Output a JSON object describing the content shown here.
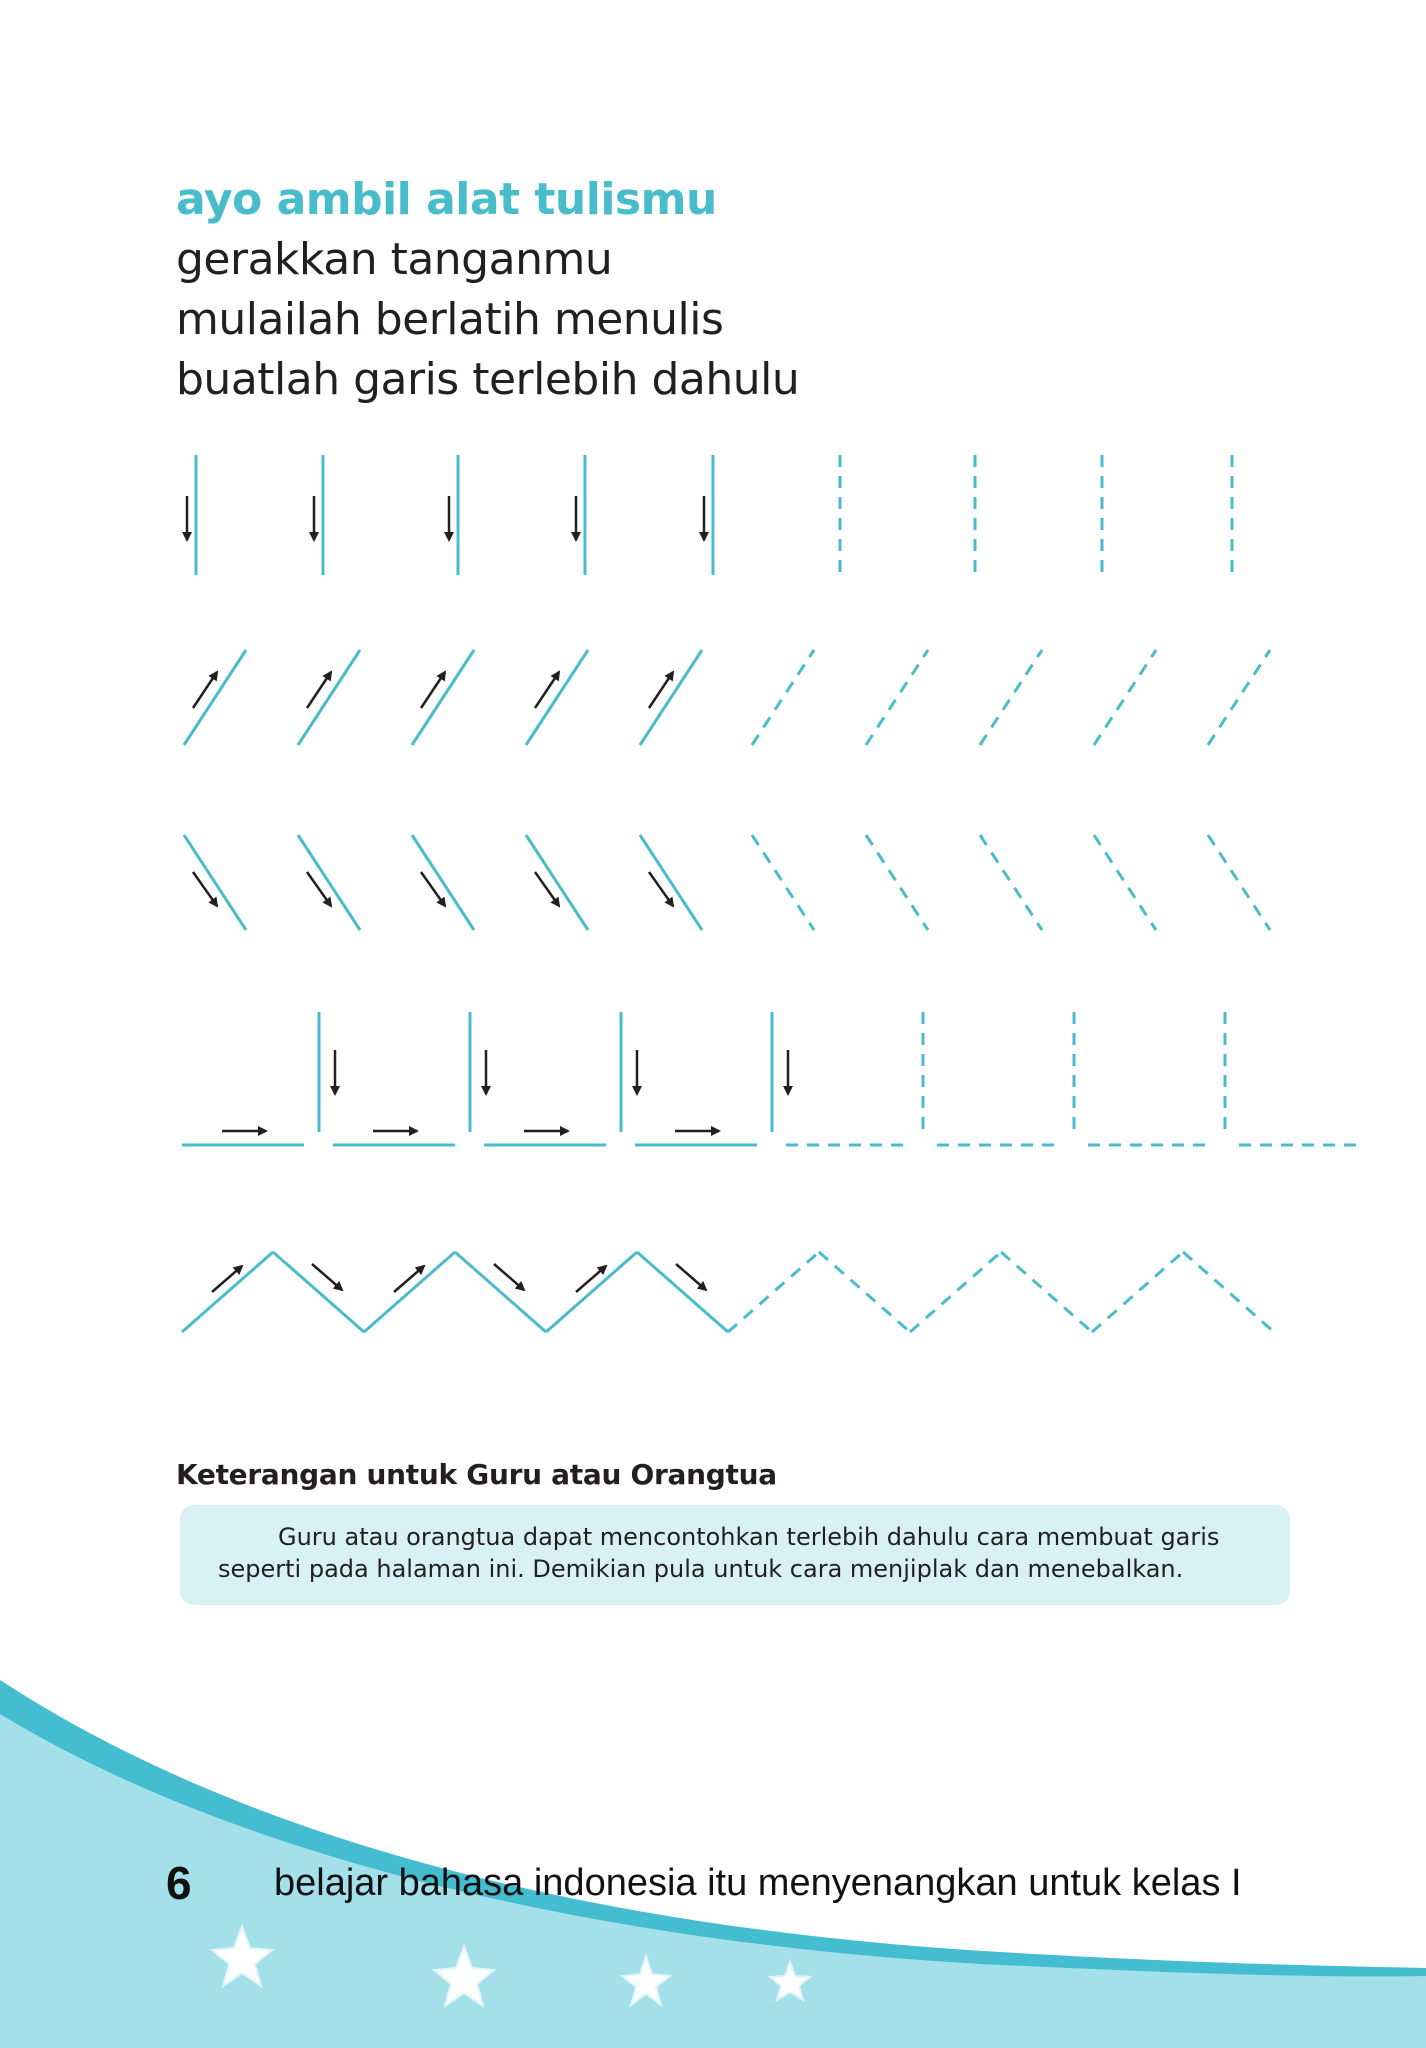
{
  "title": {
    "line1": "ayo ambil alat tulismu",
    "line2": "gerakkan tanganmu",
    "line3": "mulailah berlatih menulis",
    "line4": "buatlah garis terlebih dahulu"
  },
  "exercises": [
    {
      "name": "vertical-lines",
      "solid_count": 5,
      "dashed_count": 4
    },
    {
      "name": "diagonal-up-lines",
      "solid_count": 5,
      "dashed_count": 5
    },
    {
      "name": "diagonal-down-lines",
      "solid_count": 5,
      "dashed_count": 5
    },
    {
      "name": "corner-lines",
      "solid_count": 4,
      "dashed_count": 3
    },
    {
      "name": "zigzag-line",
      "solid_peaks": 3,
      "dashed_peaks": 3
    }
  ],
  "note": {
    "heading": "Keterangan untuk Guru atau Orangtua",
    "line1": "Guru atau orangtua dapat mencontohkan terlebih dahulu cara membuat garis",
    "line2": "seperti pada halaman ini. Demikian pula untuk cara menjiplak dan menebalkan."
  },
  "footer": {
    "page_number": "6",
    "text": "belajar bahasa indonesia itu menyenangkan untuk kelas I"
  },
  "colors": {
    "accent": "#49bccc",
    "ink": "#231f20",
    "note_bg": "#d8f1f5",
    "wave_light": "#a4e0ea",
    "wave_dark": "#45bdd0"
  }
}
